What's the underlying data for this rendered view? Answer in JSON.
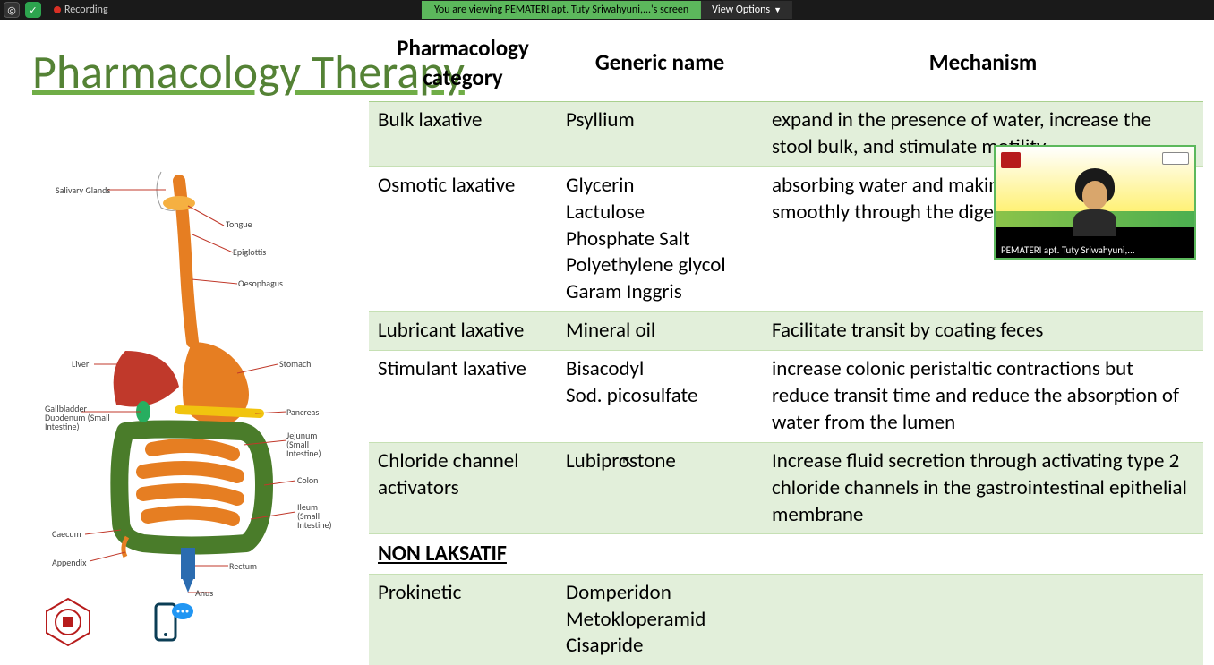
{
  "topbar": {
    "recording": "Recording",
    "share_banner": "You are viewing PEMATERI apt. Tuty Sriwahyuni,...'s screen",
    "view_options": "View Options"
  },
  "title": "Pharmacology Therapy",
  "diagram_labels": {
    "salivary": "Salivary Glands",
    "tongue": "Tongue",
    "epiglottis": "Epiglottis",
    "oesophagus": "Oesophagus",
    "liver": "Liver",
    "stomach": "Stomach",
    "gallbladder": "Gallbladder",
    "duodenum": "Duodenum (Small Intestine)",
    "pancreas": "Pancreas",
    "jejunum": "Jejunum (Small Intestine)",
    "colon": "Colon",
    "ileum": "Ileum (Small Intestine)",
    "caecum": "Caecum",
    "appendix": "Appendix",
    "rectum": "Rectum",
    "anus": "Anus"
  },
  "video": {
    "caption": "PEMATERI apt. Tuty Sriwahyuni,..."
  },
  "table": {
    "headers": {
      "c1": "Pharmacology category",
      "c2": "Generic name",
      "c3": "Mechanism"
    },
    "rows": [
      {
        "shade": true,
        "c1": "Bulk laxative",
        "c2": "Psyllium",
        "c3": "expand in the presence of water, increase the stool bulk, and stimulate motility"
      },
      {
        "shade": false,
        "c1": "Osmotic laxative",
        "c2": "Glycerin\nLactulose\nPhosphate Salt\nPolyethylene glycol\nGaram Inggris",
        "c3": "absorbing water and making stool progress more smoothly through the digestive system"
      },
      {
        "shade": true,
        "c1": "Lubricant laxative",
        "c2": "Mineral oil",
        "c3": "Facilitate transit by coating feces"
      },
      {
        "shade": false,
        "c1": "Stimulant laxative",
        "c2": "Bisacodyl\nSod. picosulfate",
        "c3": "increase colonic peristaltic contractions but reduce transit time and reduce the absorption of water from the lumen"
      },
      {
        "shade": true,
        "c1": "Chloride channel activators",
        "c2": "Lubiprostone",
        "c3": "Increase fluid secretion through activating type 2 chloride channels in the gastrointestinal epithelial membrane"
      },
      {
        "section": true,
        "c1": "NON LAKSATIF",
        "c2": "",
        "c3": ""
      },
      {
        "shade": true,
        "c1": "Prokinetic",
        "c2": "Domperidon\nMetokloperamid\nCisapride",
        "c3": ""
      }
    ],
    "colors": {
      "shade_bg": "#e2efda",
      "border": "#c6e0b4",
      "title_underline": "#70ad47",
      "title_color": "#548235"
    }
  }
}
